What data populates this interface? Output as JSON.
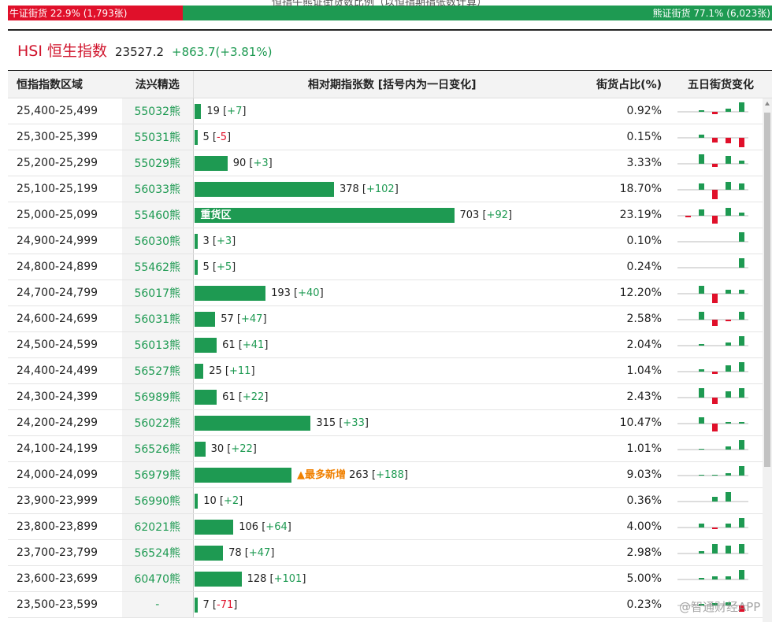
{
  "top_title_cut": "恒指牛熊证街货数比例（以恒指期指张数计算）",
  "bull": {
    "label": "牛证街货 22.9% (1,793张)",
    "share": 0.229,
    "color": "#e0102a"
  },
  "bear": {
    "label": "熊证街货 77.1% (6,023张)",
    "share": 0.771,
    "color": "#1e9a52"
  },
  "index": {
    "title": "HSI 恒生指数",
    "price": "23527.2",
    "change": "+863.7(+3.81%)"
  },
  "headers": {
    "range": "恒指指数区域",
    "pick": "法兴精选",
    "bar": "相对期指张数 [括号内为一日变化]",
    "pct": "街货占比(%)",
    "trend": "五日街货变化"
  },
  "bar_scale_max": 703,
  "rows": [
    {
      "range": "25,400-25,499",
      "code": "55032熊",
      "count": 19,
      "count_text": "19",
      "change": "+7",
      "pct": "0.92%",
      "trend": [
        0,
        2,
        -3,
        4,
        12
      ]
    },
    {
      "range": "25,300-25,399",
      "code": "55031熊",
      "count": 5,
      "count_text": "5",
      "change": "-5",
      "pct": "0.15%",
      "trend": [
        0,
        4,
        -6,
        -7,
        -12
      ]
    },
    {
      "range": "25,200-25,299",
      "code": "55029熊",
      "count": 90,
      "count_text": "90",
      "change": "+3",
      "pct": "3.33%",
      "trend": [
        0,
        12,
        -4,
        10,
        4
      ]
    },
    {
      "range": "25,100-25,199",
      "code": "56033熊",
      "count": 378,
      "count_text": "378",
      "change": "+102",
      "pct": "18.70%",
      "trend": [
        0,
        8,
        -12,
        10,
        8
      ]
    },
    {
      "range": "25,000-25,099",
      "code": "55460熊",
      "count": 703,
      "count_text": "703",
      "change": "+92",
      "pct": "23.19%",
      "trend": [
        -2,
        8,
        -10,
        10,
        4
      ],
      "tag": "重货区"
    },
    {
      "range": "24,900-24,999",
      "code": "56030熊",
      "count": 3,
      "count_text": "3",
      "change": "+3",
      "pct": "0.10%",
      "trend": [
        0,
        0,
        0,
        0,
        12
      ]
    },
    {
      "range": "24,800-24,899",
      "code": "55462熊",
      "count": 5,
      "count_text": "5",
      "change": "+5",
      "pct": "0.24%",
      "trend": [
        0,
        0,
        0,
        0,
        12
      ]
    },
    {
      "range": "24,700-24,799",
      "code": "56017熊",
      "count": 193,
      "count_text": "193",
      "change": "+40",
      "pct": "12.20%",
      "trend": [
        0,
        10,
        -12,
        5,
        5
      ]
    },
    {
      "range": "24,600-24,699",
      "code": "56031熊",
      "count": 57,
      "count_text": "57",
      "change": "+47",
      "pct": "2.58%",
      "trend": [
        0,
        10,
        -8,
        -2,
        10
      ]
    },
    {
      "range": "24,500-24,599",
      "code": "56013熊",
      "count": 61,
      "count_text": "61",
      "change": "+41",
      "pct": "2.04%",
      "trend": [
        0,
        2,
        0,
        4,
        12
      ]
    },
    {
      "range": "24,400-24,499",
      "code": "56527熊",
      "count": 25,
      "count_text": "25",
      "change": "+11",
      "pct": "1.04%",
      "trend": [
        0,
        3,
        -3,
        8,
        12
      ]
    },
    {
      "range": "24,300-24,399",
      "code": "56989熊",
      "count": 61,
      "count_text": "61",
      "change": "+22",
      "pct": "2.43%",
      "trend": [
        0,
        12,
        -8,
        8,
        12
      ]
    },
    {
      "range": "24,200-24,299",
      "code": "56022熊",
      "count": 315,
      "count_text": "315",
      "change": "+33",
      "pct": "10.47%",
      "trend": [
        0,
        8,
        -10,
        2,
        2
      ]
    },
    {
      "range": "24,100-24,199",
      "code": "56526熊",
      "count": 30,
      "count_text": "30",
      "change": "+22",
      "pct": "1.01%",
      "trend": [
        0,
        1,
        0,
        4,
        12
      ]
    },
    {
      "range": "24,000-24,099",
      "code": "56979熊",
      "count": 263,
      "count_text": "263",
      "change": "+188",
      "pct": "9.03%",
      "trend": [
        0,
        1,
        1,
        3,
        12
      ],
      "note": "▲最多新增"
    },
    {
      "range": "23,900-23,999",
      "code": "56990熊",
      "count": 10,
      "count_text": "10",
      "change": "+2",
      "pct": "0.36%",
      "trend": [
        0,
        0,
        6,
        12,
        0
      ]
    },
    {
      "range": "23,800-23,899",
      "code": "62021熊",
      "count": 106,
      "count_text": "106",
      "change": "+64",
      "pct": "4.00%",
      "trend": [
        0,
        5,
        -2,
        5,
        12
      ]
    },
    {
      "range": "23,700-23,799",
      "code": "56524熊",
      "count": 78,
      "count_text": "78",
      "change": "+47",
      "pct": "2.98%",
      "trend": [
        0,
        3,
        12,
        10,
        12
      ]
    },
    {
      "range": "23,600-23,699",
      "code": "60470熊",
      "count": 128,
      "count_text": "128",
      "change": "+101",
      "pct": "5.00%",
      "trend": [
        0,
        2,
        4,
        4,
        12
      ]
    },
    {
      "range": "23,500-23,599",
      "code": "-",
      "count": 7,
      "count_text": "7",
      "change": "-71",
      "pct": "0.23%",
      "trend": [
        0,
        2,
        3,
        4,
        -8
      ]
    }
  ],
  "colors": {
    "green": "#1e9a52",
    "red": "#e0102a",
    "orange": "#f08000"
  },
  "watermark": "@智通财经APP"
}
